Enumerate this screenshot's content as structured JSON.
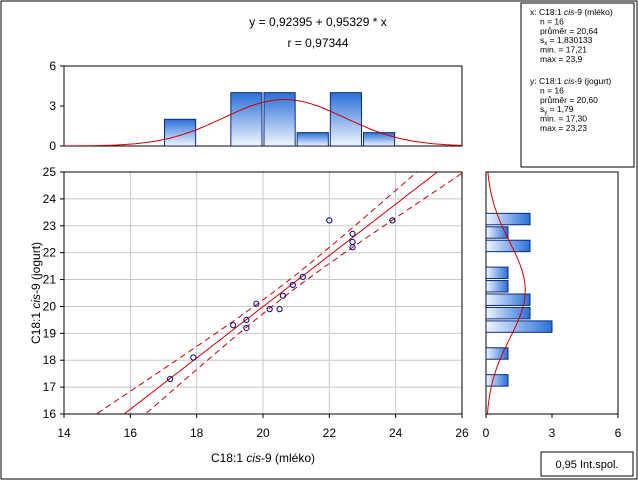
{
  "chart_data": {
    "type": "scatter",
    "equation": "y = 0,92395 + 0,95329 * x",
    "r_text": "r = 0,97344",
    "xlabel": {
      "pre": "C18:1 ",
      "ital": "cis",
      "post": "-9 (mléko)"
    },
    "ylabel": {
      "pre": "C18:1 ",
      "ital": "cis",
      "post": "-9 (jogurt)"
    },
    "xlim": [
      14,
      26
    ],
    "ylim": [
      16,
      25
    ],
    "x_ticks": [
      "14",
      "16",
      "18",
      "20",
      "22",
      "24",
      "26"
    ],
    "y_ticks": [
      "16",
      "17",
      "18",
      "19",
      "20",
      "21",
      "22",
      "23",
      "24",
      "25"
    ],
    "grid": true,
    "intercept": 0.92395,
    "slope": 0.95329,
    "points": [
      {
        "x": 17.2,
        "y": 17.3
      },
      {
        "x": 17.9,
        "y": 18.1
      },
      {
        "x": 19.1,
        "y": 19.3
      },
      {
        "x": 19.5,
        "y": 19.5
      },
      {
        "x": 19.5,
        "y": 19.2
      },
      {
        "x": 19.8,
        "y": 20.1
      },
      {
        "x": 20.2,
        "y": 19.9
      },
      {
        "x": 20.5,
        "y": 19.9
      },
      {
        "x": 20.6,
        "y": 20.4
      },
      {
        "x": 20.9,
        "y": 20.8
      },
      {
        "x": 21.2,
        "y": 21.1
      },
      {
        "x": 22.0,
        "y": 23.2
      },
      {
        "x": 22.7,
        "y": 22.7
      },
      {
        "x": 22.7,
        "y": 22.4
      },
      {
        "x": 22.7,
        "y": 22.2
      },
      {
        "x": 23.9,
        "y": 23.2
      }
    ],
    "x_histogram": {
      "ylim": [
        0,
        6
      ],
      "y_ticks": [
        "0",
        "3",
        "6"
      ],
      "bins": [
        {
          "from": 17,
          "to": 18,
          "count": 2
        },
        {
          "from": 19,
          "to": 20,
          "count": 4
        },
        {
          "from": 20,
          "to": 21,
          "count": 4
        },
        {
          "from": 21,
          "to": 22,
          "count": 1
        },
        {
          "from": 22,
          "to": 23,
          "count": 4
        },
        {
          "from": 23,
          "to": 24,
          "count": 1
        }
      ],
      "normal_curve": {
        "mean": 20.64,
        "sd": 1.830133,
        "n": 16,
        "bin_width": 1
      }
    },
    "y_histogram": {
      "xlim": [
        0,
        6
      ],
      "x_ticks": [
        "0",
        "3",
        "6"
      ],
      "bins": [
        {
          "from": 17,
          "to": 17.5,
          "count": 1
        },
        {
          "from": 18,
          "to": 18.5,
          "count": 1
        },
        {
          "from": 19,
          "to": 19.5,
          "count": 3
        },
        {
          "from": 19.5,
          "to": 20,
          "count": 2
        },
        {
          "from": 20,
          "to": 20.5,
          "count": 2
        },
        {
          "from": 20.5,
          "to": 21,
          "count": 1
        },
        {
          "from": 21,
          "to": 21.5,
          "count": 1
        },
        {
          "from": 22,
          "to": 22.5,
          "count": 2
        },
        {
          "from": 22.5,
          "to": 23,
          "count": 1
        },
        {
          "from": 23,
          "to": 23.5,
          "count": 2
        }
      ],
      "normal_curve": {
        "mean": 20.6,
        "sd": 1.79,
        "n": 16,
        "bin_width": 0.5
      }
    },
    "stats": {
      "x": {
        "title_pre": "x: C18:1 ",
        "title_ital": "cis",
        "title_post": "-9 (mléko)",
        "lines": [
          {
            "pre": "n = 16"
          },
          {
            "pre": "průměr = 20,64"
          },
          {
            "pre": "s",
            "sub": "x",
            "post": " = 1,830133"
          },
          {
            "pre": "min. = 17,21"
          },
          {
            "pre": "max = 23,9"
          }
        ]
      },
      "y": {
        "title_pre": "y: C18:1 ",
        "title_ital": "cis",
        "title_post": "-9 (jogurt)",
        "lines": [
          {
            "pre": "n = 16"
          },
          {
            "pre": "průměr = 20,60"
          },
          {
            "pre": "s",
            "sub": "y",
            "post": " = 1,79"
          },
          {
            "pre": "min. = 17,30"
          },
          {
            "pre": "max = 23,23"
          }
        ]
      }
    },
    "legend_box": "0,95 Int.spol.",
    "colors": {
      "points": "#00008b",
      "fit_line": "#cc0000",
      "bar_top": "#2a6fd8",
      "bar_bottom": "#f0f6ff",
      "bar_edge": "#0a2a7a",
      "grid": "#c8c8c8"
    }
  }
}
